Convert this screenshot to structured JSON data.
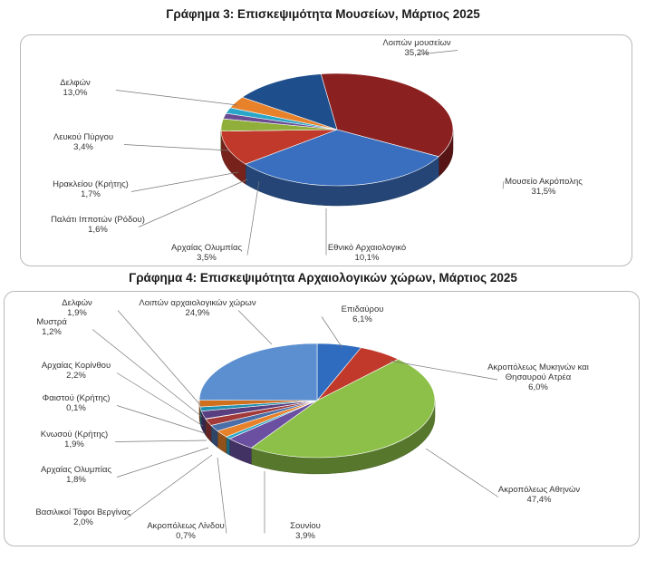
{
  "chart_data": [
    {
      "type": "pie",
      "title": "Γράφημα 3: Επισκεψιμότητα Μουσείων, Μάρτιος 2025",
      "slices": [
        {
          "label": "Λοιπών μουσείων",
          "value": 35.2,
          "value_label": "35,2%",
          "color": "#8b2020"
        },
        {
          "label": "Μουσείο Ακρόπολης",
          "value": 31.5,
          "value_label": "31,5%",
          "color": "#3a6fbf"
        },
        {
          "label": "Εθνικό Αρχαιολογικό",
          "value": 10.1,
          "value_label": "10,1%",
          "color": "#c0392b"
        },
        {
          "label": "Αρχαίας Ολυμπίας",
          "value": 3.5,
          "value_label": "3,5%",
          "color": "#8fae3a"
        },
        {
          "label": "Παλάτι Ιπποτών (Ρόδου)",
          "value": 1.6,
          "value_label": "1,6%",
          "color": "#6a4c93"
        },
        {
          "label": "Ηρακλείου (Κρήτης)",
          "value": 1.7,
          "value_label": "1,7%",
          "color": "#2aa6c8"
        },
        {
          "label": "Λευκού Πύργου",
          "value": 3.4,
          "value_label": "3,4%",
          "color": "#e8822a"
        },
        {
          "label": "Δελφών",
          "value": 13.0,
          "value_label": "13,0%",
          "color": "#1f4e8c"
        }
      ]
    },
    {
      "type": "pie",
      "title": "Γράφημα 4: Επισκεψιμότητα Αρχαιολογικών χώρων, Μάρτιος 2025",
      "slices": [
        {
          "label": "Επιδαύρου",
          "value": 6.1,
          "value_label": "6,1%",
          "color": "#2f6cc0"
        },
        {
          "label": "Ακροπόλεως Μυκηνών και Θησαυρού Ατρέα",
          "value": 6.0,
          "value_label": "6,0%",
          "color": "#c0392b"
        },
        {
          "label": "Ακροπόλεως Αθηνών",
          "value": 47.4,
          "value_label": "47,4%",
          "color": "#8dc048"
        },
        {
          "label": "Σουνίου",
          "value": 3.9,
          "value_label": "3,9%",
          "color": "#6b4fa0"
        },
        {
          "label": "Ακροπόλεως Λίνδου",
          "value": 0.7,
          "value_label": "0,7%",
          "color": "#2aa6c8"
        },
        {
          "label": "Βασιλικοί Τάφοι Βεργίνας",
          "value": 2.0,
          "value_label": "2,0%",
          "color": "#e8822a"
        },
        {
          "label": "Αρχαίας Ολυμπίας",
          "value": 1.8,
          "value_label": "1,8%",
          "color": "#4a6fa8"
        },
        {
          "label": "Κνωσού (Κρήτης)",
          "value": 1.9,
          "value_label": "1,9%",
          "color": "#a33a3a"
        },
        {
          "label": "Φαιστού (Κρήτης)",
          "value": 0.1,
          "value_label": "0,1%",
          "color": "#7a9a3a"
        },
        {
          "label": "Αρχαίας Κορίνθου",
          "value": 2.2,
          "value_label": "2,2%",
          "color": "#5a3f80"
        },
        {
          "label": "Μυστρά",
          "value": 1.2,
          "value_label": "1,2%",
          "color": "#2090b0"
        },
        {
          "label": "Δελφών",
          "value": 1.9,
          "value_label": "1,9%",
          "color": "#d0701e"
        },
        {
          "label": "Λοιπών αρχαιολογικών χώρων",
          "value": 24.9,
          "value_label": "24,9%",
          "color": "#5b8fd0"
        }
      ]
    }
  ]
}
